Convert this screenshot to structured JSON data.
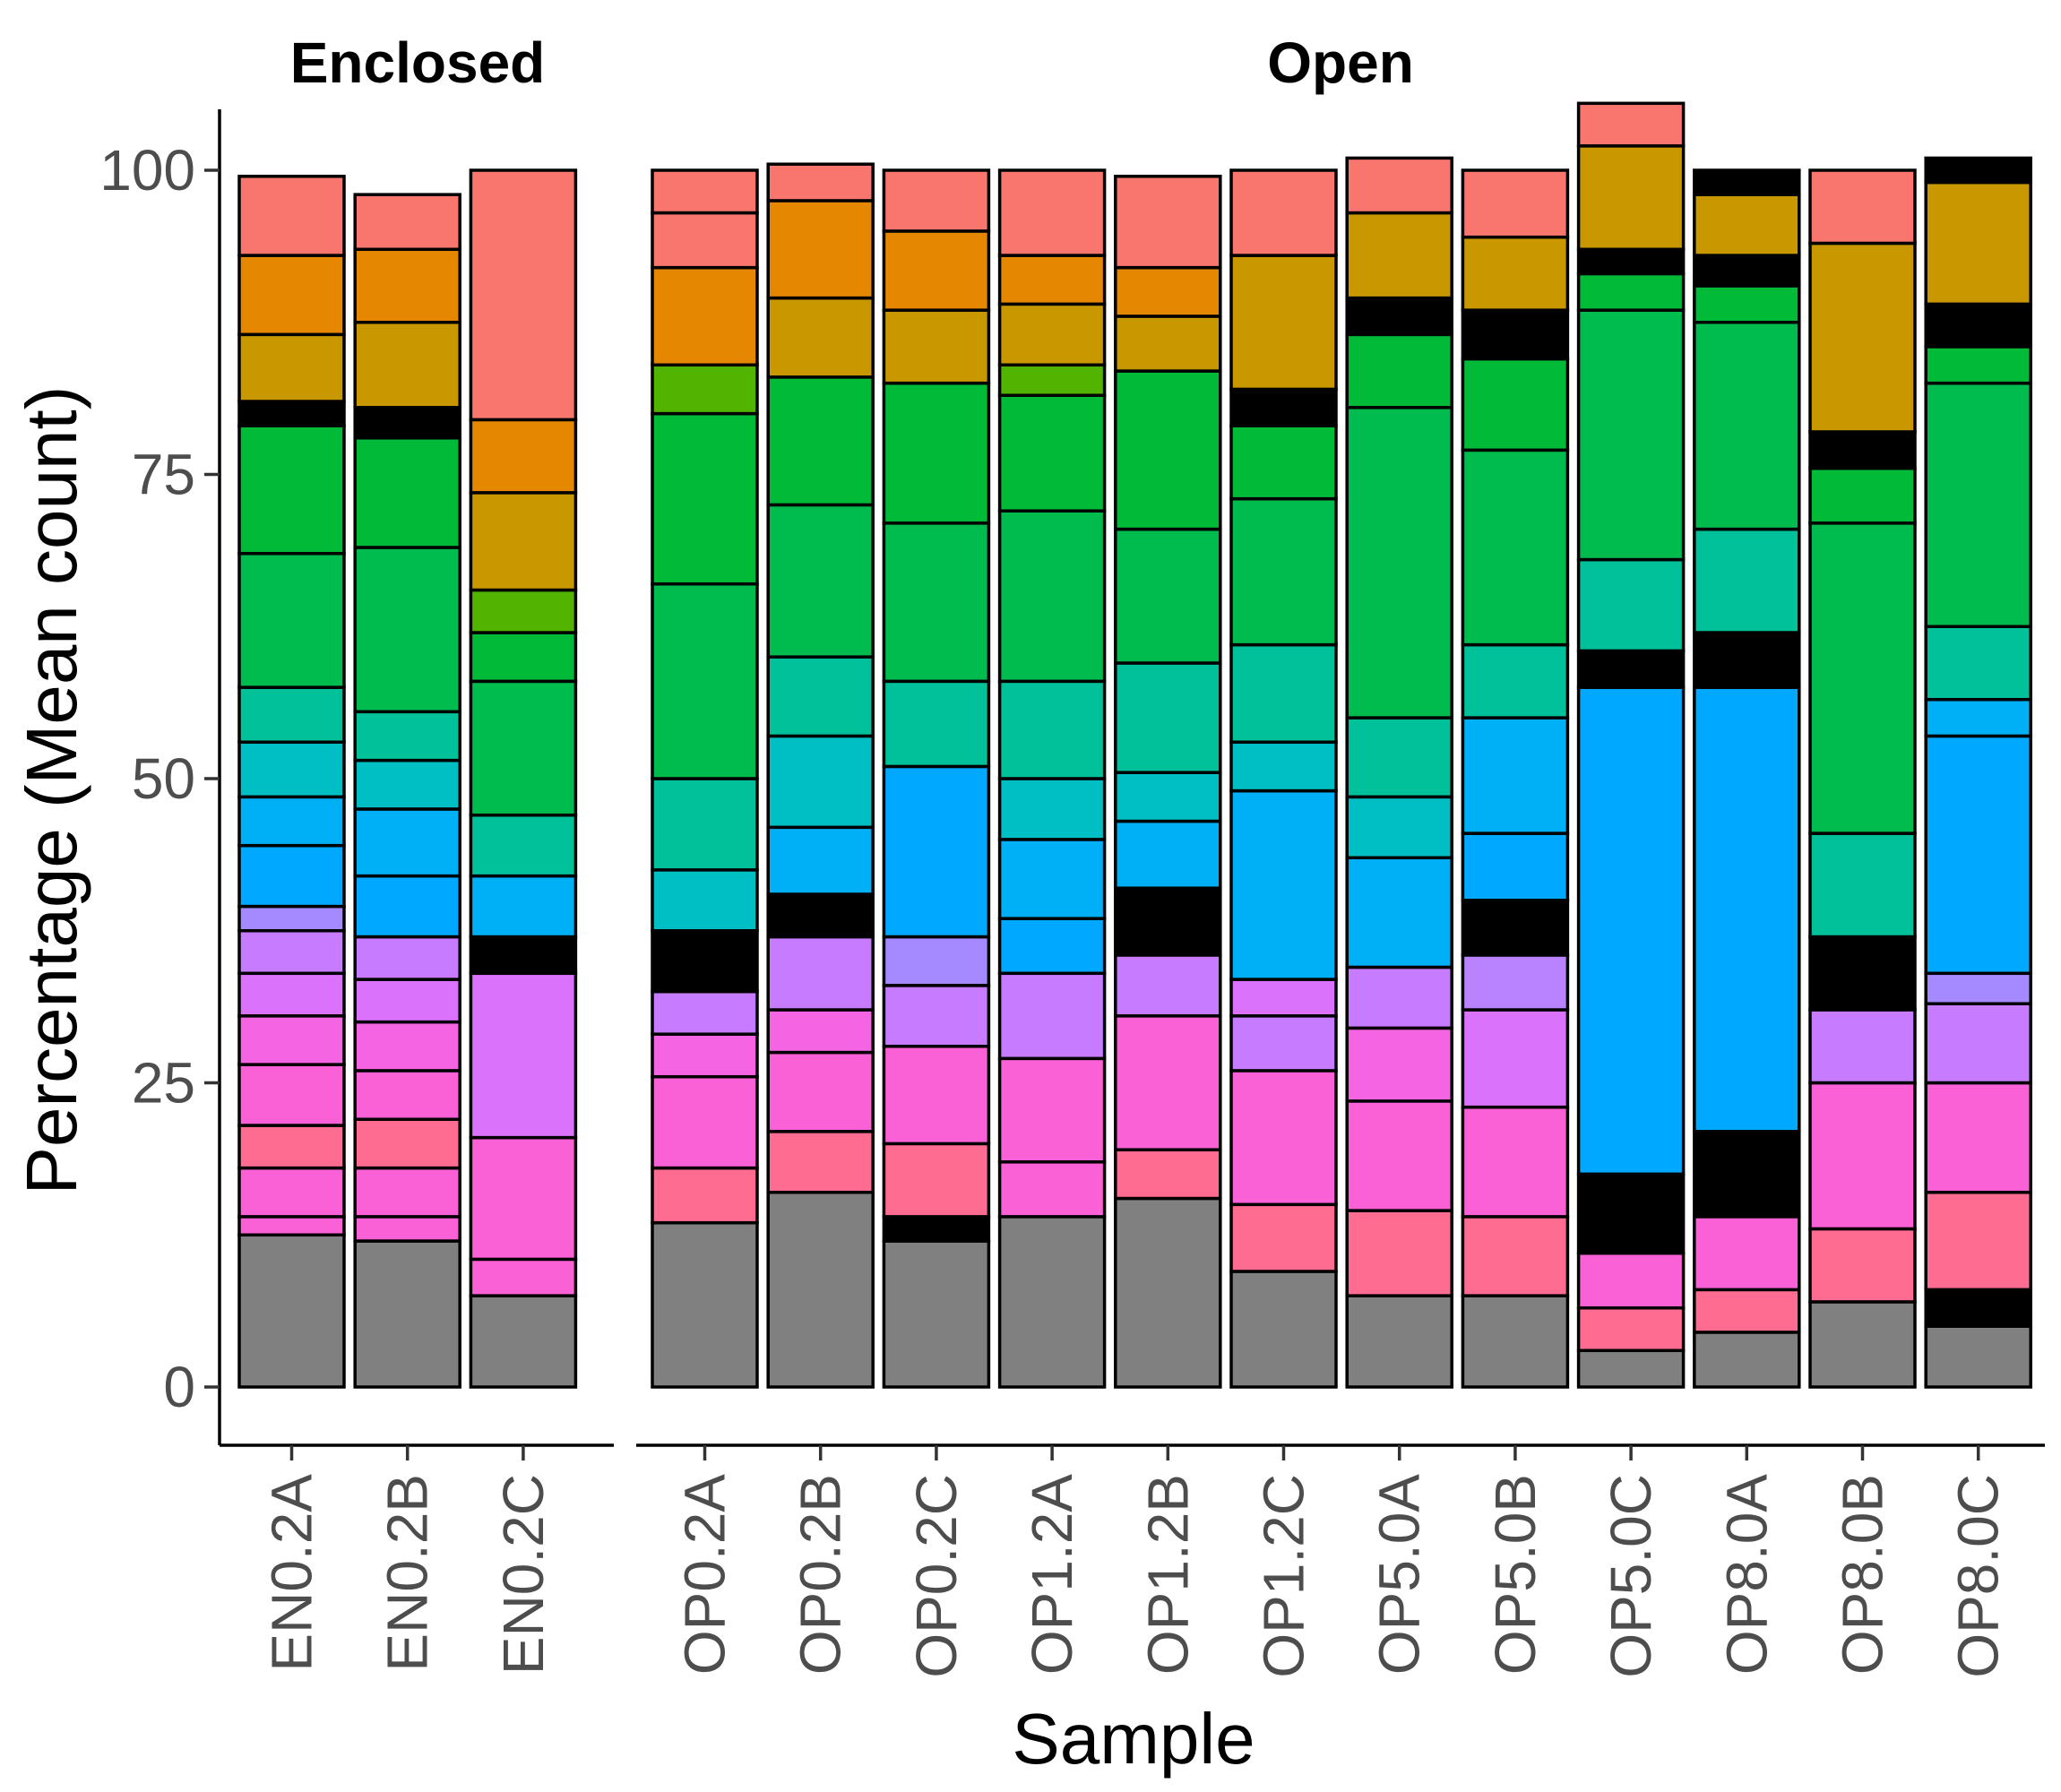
{
  "chart_data": {
    "type": "bar",
    "stacked": true,
    "xlabel": "Sample",
    "ylabel": "Percentage (Mean count)",
    "ylim": [
      0,
      100
    ],
    "yticks": [
      0,
      25,
      50,
      75,
      100
    ],
    "grid": false,
    "legend": "none",
    "panels": [
      {
        "title": "Enclosed",
        "samples": [
          "EN0.2A",
          "EN0.2B",
          "EN0.2C"
        ]
      },
      {
        "title": "Open",
        "samples": [
          "OP0.2A",
          "OP0.2B",
          "OP0.2C",
          "OP1.2A",
          "OP1.2B",
          "OP1.2C",
          "OP5.0A",
          "OP5.0B",
          "OP5.0C",
          "OP8.0A",
          "OP8.0B",
          "OP8.0C"
        ]
      }
    ],
    "bars": [
      {
        "sample": "EN0.2A",
        "segments": [
          {
            "value": 12.5,
            "color": "#808080"
          },
          {
            "value": 1.5,
            "color": "#fb61d7"
          },
          {
            "value": 4.0,
            "color": "#fb61d7"
          },
          {
            "value": 3.5,
            "color": "#ff6c91"
          },
          {
            "value": 5.0,
            "color": "#fb61d7"
          },
          {
            "value": 4.0,
            "color": "#f564e3"
          },
          {
            "value": 3.5,
            "color": "#db72fb"
          },
          {
            "value": 3.5,
            "color": "#c77cff"
          },
          {
            "value": 2.0,
            "color": "#a58aff"
          },
          {
            "value": 5.0,
            "color": "#00a9ff"
          },
          {
            "value": 4.0,
            "color": "#00b0f6"
          },
          {
            "value": 4.5,
            "color": "#00bfc4"
          },
          {
            "value": 4.5,
            "color": "#00c19a"
          },
          {
            "value": 11.0,
            "color": "#00bb4e"
          },
          {
            "value": 10.5,
            "color": "#00ba38"
          },
          {
            "value": 2.0,
            "color": "#000000"
          },
          {
            "value": 5.5,
            "color": "#c99800"
          },
          {
            "value": 6.5,
            "color": "#e58700"
          },
          {
            "value": 6.5,
            "color": "#f8766d"
          }
        ]
      },
      {
        "sample": "EN0.2B",
        "segments": [
          {
            "value": 12.0,
            "color": "#808080"
          },
          {
            "value": 2.0,
            "color": "#fb61d7"
          },
          {
            "value": 4.0,
            "color": "#fb61d7"
          },
          {
            "value": 4.0,
            "color": "#ff6c91"
          },
          {
            "value": 4.0,
            "color": "#fb61d7"
          },
          {
            "value": 4.0,
            "color": "#f564e3"
          },
          {
            "value": 3.5,
            "color": "#db72fb"
          },
          {
            "value": 3.5,
            "color": "#c77cff"
          },
          {
            "value": 5.0,
            "color": "#00a9ff"
          },
          {
            "value": 5.5,
            "color": "#00b0f6"
          },
          {
            "value": 4.0,
            "color": "#00bfc4"
          },
          {
            "value": 4.0,
            "color": "#00c19a"
          },
          {
            "value": 13.5,
            "color": "#00bb4e"
          },
          {
            "value": 9.0,
            "color": "#00ba38"
          },
          {
            "value": 2.5,
            "color": "#000000"
          },
          {
            "value": 7.0,
            "color": "#c99800"
          },
          {
            "value": 6.0,
            "color": "#e58700"
          },
          {
            "value": 4.5,
            "color": "#f8766d"
          }
        ]
      },
      {
        "sample": "EN0.2C",
        "segments": [
          {
            "value": 7.5,
            "color": "#808080"
          },
          {
            "value": 3.0,
            "color": "#fb61d7"
          },
          {
            "value": 10.0,
            "color": "#fb61d7"
          },
          {
            "value": 13.5,
            "color": "#db72fb"
          },
          {
            "value": 3.0,
            "color": "#000000"
          },
          {
            "value": 5.0,
            "color": "#00b0f6"
          },
          {
            "value": 5.0,
            "color": "#00c19a"
          },
          {
            "value": 11.0,
            "color": "#00bb4e"
          },
          {
            "value": 4.0,
            "color": "#00ba38"
          },
          {
            "value": 3.5,
            "color": "#53b400"
          },
          {
            "value": 8.0,
            "color": "#c99800"
          },
          {
            "value": 6.0,
            "color": "#e58700"
          },
          {
            "value": 20.5,
            "color": "#f8766d"
          }
        ]
      },
      {
        "sample": "OP0.2A",
        "segments": [
          {
            "value": 13.5,
            "color": "#808080"
          },
          {
            "value": 4.5,
            "color": "#ff6c91"
          },
          {
            "value": 7.5,
            "color": "#fb61d7"
          },
          {
            "value": 3.5,
            "color": "#f564e3"
          },
          {
            "value": 3.5,
            "color": "#c77cff"
          },
          {
            "value": 5.0,
            "color": "#000000"
          },
          {
            "value": 5.0,
            "color": "#00bfc4"
          },
          {
            "value": 7.5,
            "color": "#00c19a"
          },
          {
            "value": 16.0,
            "color": "#00bb4e"
          },
          {
            "value": 14.0,
            "color": "#00ba38"
          },
          {
            "value": 4.0,
            "color": "#53b400"
          },
          {
            "value": 8.0,
            "color": "#e58700"
          },
          {
            "value": 4.5,
            "color": "#f8766d"
          },
          {
            "value": 3.5,
            "color": "#f8766d"
          }
        ]
      },
      {
        "sample": "OP0.2B",
        "segments": [
          {
            "value": 16.0,
            "color": "#808080"
          },
          {
            "value": 5.0,
            "color": "#ff6c91"
          },
          {
            "value": 6.5,
            "color": "#fb61d7"
          },
          {
            "value": 3.5,
            "color": "#f564e3"
          },
          {
            "value": 6.0,
            "color": "#c77cff"
          },
          {
            "value": 3.5,
            "color": "#000000"
          },
          {
            "value": 5.5,
            "color": "#00b0f6"
          },
          {
            "value": 7.5,
            "color": "#00bfc4"
          },
          {
            "value": 6.5,
            "color": "#00c19a"
          },
          {
            "value": 12.5,
            "color": "#00bb4e"
          },
          {
            "value": 10.5,
            "color": "#00ba38"
          },
          {
            "value": 6.5,
            "color": "#c99800"
          },
          {
            "value": 8.0,
            "color": "#e58700"
          },
          {
            "value": 3.0,
            "color": "#f8766d"
          }
        ]
      },
      {
        "sample": "OP0.2C",
        "segments": [
          {
            "value": 12.0,
            "color": "#808080"
          },
          {
            "value": 2.0,
            "color": "#000000"
          },
          {
            "value": 6.0,
            "color": "#ff6c91"
          },
          {
            "value": 8.0,
            "color": "#fb61d7"
          },
          {
            "value": 5.0,
            "color": "#c77cff"
          },
          {
            "value": 4.0,
            "color": "#a58aff"
          },
          {
            "value": 14.0,
            "color": "#00a9ff"
          },
          {
            "value": 7.0,
            "color": "#00c19a"
          },
          {
            "value": 13.0,
            "color": "#00bb4e"
          },
          {
            "value": 11.5,
            "color": "#00ba38"
          },
          {
            "value": 6.0,
            "color": "#c99800"
          },
          {
            "value": 6.5,
            "color": "#e58700"
          },
          {
            "value": 5.0,
            "color": "#f8766d"
          }
        ]
      },
      {
        "sample": "OP1.2A",
        "segments": [
          {
            "value": 14.0,
            "color": "#808080"
          },
          {
            "value": 4.5,
            "color": "#fb61d7"
          },
          {
            "value": 8.5,
            "color": "#fb61d7"
          },
          {
            "value": 7.0,
            "color": "#c77cff"
          },
          {
            "value": 4.5,
            "color": "#00a9ff"
          },
          {
            "value": 6.5,
            "color": "#00b0f6"
          },
          {
            "value": 5.0,
            "color": "#00bfc4"
          },
          {
            "value": 8.0,
            "color": "#00c19a"
          },
          {
            "value": 14.0,
            "color": "#00bb4e"
          },
          {
            "value": 9.5,
            "color": "#00ba38"
          },
          {
            "value": 2.5,
            "color": "#53b400"
          },
          {
            "value": 5.0,
            "color": "#c99800"
          },
          {
            "value": 4.0,
            "color": "#e58700"
          },
          {
            "value": 7.0,
            "color": "#f8766d"
          }
        ]
      },
      {
        "sample": "OP1.2B",
        "segments": [
          {
            "value": 15.5,
            "color": "#808080"
          },
          {
            "value": 4.0,
            "color": "#ff6c91"
          },
          {
            "value": 11.0,
            "color": "#fb61d7"
          },
          {
            "value": 5.0,
            "color": "#c77cff"
          },
          {
            "value": 5.5,
            "color": "#000000"
          },
          {
            "value": 5.5,
            "color": "#00b0f6"
          },
          {
            "value": 4.0,
            "color": "#00bfc4"
          },
          {
            "value": 9.0,
            "color": "#00c19a"
          },
          {
            "value": 11.0,
            "color": "#00bb4e"
          },
          {
            "value": 13.0,
            "color": "#00ba38"
          },
          {
            "value": 4.5,
            "color": "#c99800"
          },
          {
            "value": 4.0,
            "color": "#e58700"
          },
          {
            "value": 7.5,
            "color": "#f8766d"
          }
        ]
      },
      {
        "sample": "OP1.2C",
        "segments": [
          {
            "value": 9.5,
            "color": "#808080"
          },
          {
            "value": 5.5,
            "color": "#ff6c91"
          },
          {
            "value": 11.0,
            "color": "#fb61d7"
          },
          {
            "value": 4.5,
            "color": "#c77cff"
          },
          {
            "value": 3.0,
            "color": "#db72fb"
          },
          {
            "value": 15.5,
            "color": "#00b0f6"
          },
          {
            "value": 4.0,
            "color": "#00bfc4"
          },
          {
            "value": 8.0,
            "color": "#00c19a"
          },
          {
            "value": 12.0,
            "color": "#00bb4e"
          },
          {
            "value": 6.0,
            "color": "#00ba38"
          },
          {
            "value": 3.0,
            "color": "#000000"
          },
          {
            "value": 11.0,
            "color": "#c99800"
          },
          {
            "value": 7.0,
            "color": "#f8766d"
          }
        ]
      },
      {
        "sample": "OP5.0A",
        "segments": [
          {
            "value": 7.5,
            "color": "#808080"
          },
          {
            "value": 7.0,
            "color": "#ff6c91"
          },
          {
            "value": 9.0,
            "color": "#fb61d7"
          },
          {
            "value": 6.0,
            "color": "#f564e3"
          },
          {
            "value": 5.0,
            "color": "#c77cff"
          },
          {
            "value": 9.0,
            "color": "#00b0f6"
          },
          {
            "value": 5.0,
            "color": "#00bfc4"
          },
          {
            "value": 6.5,
            "color": "#00c19a"
          },
          {
            "value": 25.5,
            "color": "#00bb4e"
          },
          {
            "value": 6.0,
            "color": "#00ba38"
          },
          {
            "value": 3.0,
            "color": "#000000"
          },
          {
            "value": 7.0,
            "color": "#c99800"
          },
          {
            "value": 4.5,
            "color": "#f8766d"
          }
        ]
      },
      {
        "sample": "OP5.0B",
        "segments": [
          {
            "value": 7.5,
            "color": "#808080"
          },
          {
            "value": 6.5,
            "color": "#ff6c91"
          },
          {
            "value": 9.0,
            "color": "#fb61d7"
          },
          {
            "value": 8.0,
            "color": "#db72fb"
          },
          {
            "value": 4.5,
            "color": "#b983ff"
          },
          {
            "value": 4.5,
            "color": "#000000"
          },
          {
            "value": 5.5,
            "color": "#00a9ff"
          },
          {
            "value": 9.5,
            "color": "#00b0f6"
          },
          {
            "value": 6.0,
            "color": "#00c19a"
          },
          {
            "value": 16.0,
            "color": "#00bb4e"
          },
          {
            "value": 7.5,
            "color": "#00ba38"
          },
          {
            "value": 4.0,
            "color": "#000000"
          },
          {
            "value": 6.0,
            "color": "#c99800"
          },
          {
            "value": 5.5,
            "color": "#f8766d"
          }
        ]
      },
      {
        "sample": "OP5.0C",
        "segments": [
          {
            "value": 3.0,
            "color": "#808080"
          },
          {
            "value": 3.5,
            "color": "#ff6c91"
          },
          {
            "value": 4.5,
            "color": "#fb61d7"
          },
          {
            "value": 6.5,
            "color": "#000000"
          },
          {
            "value": 40.0,
            "color": "#00a9ff"
          },
          {
            "value": 3.0,
            "color": "#000000"
          },
          {
            "value": 7.5,
            "color": "#00c19a"
          },
          {
            "value": 20.5,
            "color": "#00bb4e"
          },
          {
            "value": 3.0,
            "color": "#00ba38"
          },
          {
            "value": 2.0,
            "color": "#000000"
          },
          {
            "value": 8.5,
            "color": "#c99800"
          },
          {
            "value": 3.5,
            "color": "#f8766d"
          }
        ]
      },
      {
        "sample": "OP8.0A",
        "segments": [
          {
            "value": 4.5,
            "color": "#808080"
          },
          {
            "value": 3.5,
            "color": "#ff6c91"
          },
          {
            "value": 6.0,
            "color": "#fb61d7"
          },
          {
            "value": 7.0,
            "color": "#000000"
          },
          {
            "value": 36.5,
            "color": "#00a9ff"
          },
          {
            "value": 4.5,
            "color": "#000000"
          },
          {
            "value": 8.5,
            "color": "#00c19a"
          },
          {
            "value": 17.0,
            "color": "#00bb4e"
          },
          {
            "value": 3.0,
            "color": "#00ba38"
          },
          {
            "value": 2.5,
            "color": "#000000"
          },
          {
            "value": 5.0,
            "color": "#c99800"
          },
          {
            "value": 2.0,
            "color": "#000000"
          }
        ]
      },
      {
        "sample": "OP8.0B",
        "segments": [
          {
            "value": 7.0,
            "color": "#808080"
          },
          {
            "value": 6.0,
            "color": "#ff6c91"
          },
          {
            "value": 12.0,
            "color": "#fb61d7"
          },
          {
            "value": 6.0,
            "color": "#c77cff"
          },
          {
            "value": 6.0,
            "color": "#000000"
          },
          {
            "value": 8.5,
            "color": "#00c19a"
          },
          {
            "value": 25.5,
            "color": "#00bb4e"
          },
          {
            "value": 4.5,
            "color": "#00ba38"
          },
          {
            "value": 3.0,
            "color": "#000000"
          },
          {
            "value": 15.5,
            "color": "#c99800"
          },
          {
            "value": 6.0,
            "color": "#f8766d"
          }
        ]
      },
      {
        "sample": "OP8.0C",
        "segments": [
          {
            "value": 5.0,
            "color": "#808080"
          },
          {
            "value": 3.0,
            "color": "#000000"
          },
          {
            "value": 8.0,
            "color": "#ff6c91"
          },
          {
            "value": 9.0,
            "color": "#fb61d7"
          },
          {
            "value": 6.5,
            "color": "#c77cff"
          },
          {
            "value": 2.5,
            "color": "#a58aff"
          },
          {
            "value": 19.5,
            "color": "#00a9ff"
          },
          {
            "value": 3.0,
            "color": "#00b0f6"
          },
          {
            "value": 6.0,
            "color": "#00c19a"
          },
          {
            "value": 20.0,
            "color": "#00bb4e"
          },
          {
            "value": 3.0,
            "color": "#00ba38"
          },
          {
            "value": 3.5,
            "color": "#000000"
          },
          {
            "value": 10.0,
            "color": "#c99800"
          },
          {
            "value": 2.0,
            "color": "#000000"
          }
        ]
      }
    ]
  }
}
